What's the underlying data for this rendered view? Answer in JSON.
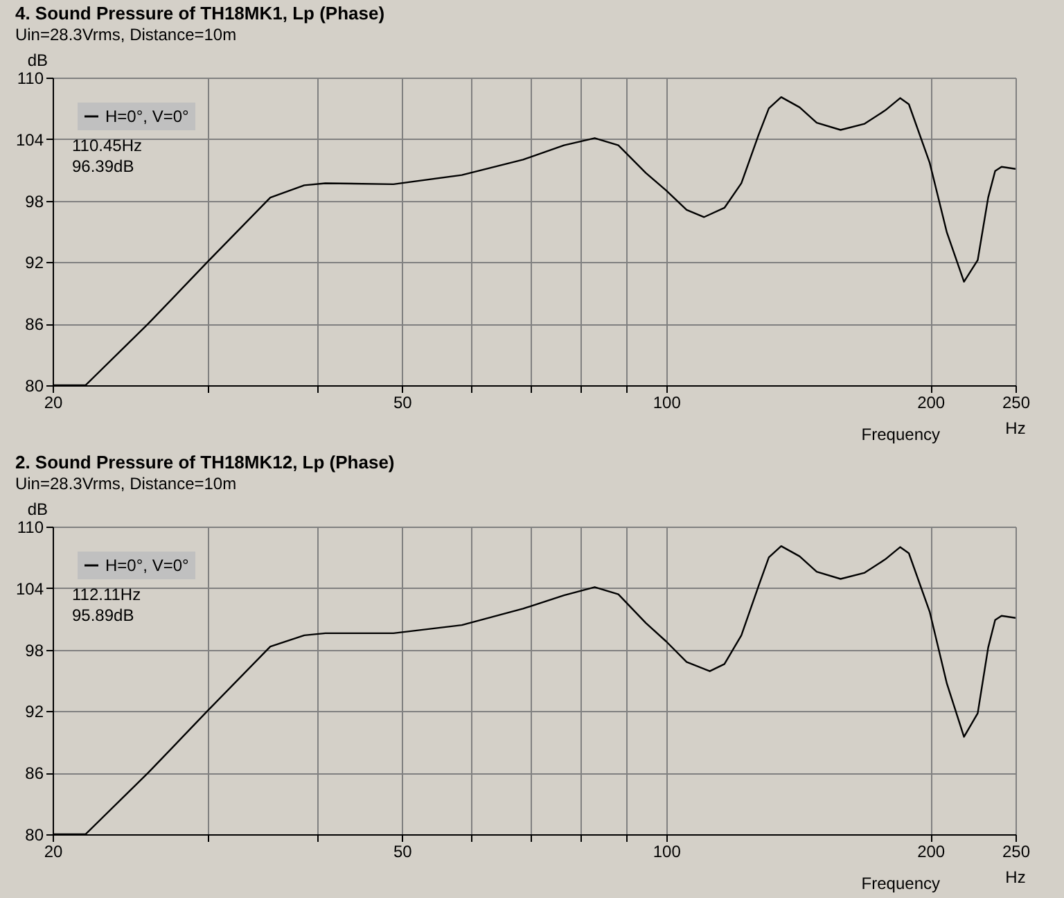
{
  "chart_data": [
    {
      "type": "line",
      "title": "4. Sound Pressure of TH18MK1, Lp (Phase)",
      "subtitle": "Uin=28.3Vrms, Distance=10m",
      "xlabel": "Frequency",
      "ylabel": "dB",
      "annotations": [
        "110.45Hz",
        "96.39dB",
        "Hz"
      ],
      "x": [
        20,
        21.8,
        25.7,
        30,
        35.4,
        38.7,
        40.9,
        48.9,
        58.5,
        68.7,
        76.5,
        82.9,
        88.2,
        94.8,
        100,
        105.5,
        110.45,
        116.5,
        121.8,
        127.4,
        130.9,
        135.2,
        141.9,
        148.4,
        158,
        168.3,
        177.6,
        184.7,
        189,
        199.6,
        208.8,
        218.4,
        226.4,
        232.7,
        237,
        241,
        250
      ],
      "series": [
        {
          "name": "H=0°, V=0°",
          "color": "#000000",
          "values": [
            80,
            80,
            86,
            92,
            98.3,
            99.5,
            99.7,
            99.6,
            100.5,
            102,
            103.4,
            104.1,
            103.4,
            100.7,
            99,
            97.1,
            96.4,
            97.3,
            99.7,
            104.4,
            107,
            108.1,
            107.1,
            105.6,
            104.9,
            105.5,
            106.8,
            108,
            107.4,
            101.7,
            94.9,
            90.1,
            92.2,
            98.3,
            100.9,
            101.3,
            101.1
          ]
        }
      ],
      "xlim": [
        20,
        250
      ],
      "ylim": [
        80,
        110
      ],
      "log": "x",
      "xticks": [
        20,
        {
          "value": 30,
          "label": null
        },
        {
          "value": 40,
          "label": null
        },
        50,
        {
          "value": 60,
          "label": null
        },
        {
          "value": 70,
          "label": null
        },
        {
          "value": 80,
          "label": null
        },
        {
          "value": 90,
          "label": null
        },
        100,
        200,
        250
      ],
      "yticks": [
        80,
        86,
        92,
        98,
        104,
        110
      ],
      "grid": true,
      "legend": "top left",
      "marker": "none",
      "line_style": "solid"
    },
    {
      "type": "line",
      "title": "2. Sound Pressure of TH18MK12, Lp (Phase)",
      "subtitle": "Uin=28.3Vrms, Distance=10m",
      "xlabel": "Frequency",
      "ylabel": "dB",
      "annotations": [
        "112.11Hz",
        "95.89dB",
        "Hz"
      ],
      "x": [
        20,
        21.8,
        25.7,
        30,
        35.4,
        38.7,
        40.9,
        48.9,
        58.5,
        68.7,
        76.5,
        82.9,
        88.2,
        94.8,
        100,
        105.5,
        112.11,
        116.5,
        121.8,
        127.4,
        130.9,
        135.2,
        141.9,
        148.4,
        158,
        168.3,
        177.6,
        184.7,
        189,
        199.6,
        208.8,
        218.4,
        226.4,
        232.7,
        237,
        241,
        250
      ],
      "series": [
        {
          "name": "H=0°, V=0°",
          "color": "#000000",
          "values": [
            80,
            80,
            86,
            92,
            98.3,
            99.4,
            99.6,
            99.6,
            100.4,
            102,
            103.3,
            104.1,
            103.4,
            100.6,
            98.8,
            96.8,
            95.9,
            96.6,
            99.4,
            104.2,
            107,
            108.1,
            107.1,
            105.6,
            104.9,
            105.5,
            106.8,
            108,
            107.4,
            101.7,
            94.7,
            89.5,
            91.8,
            98.2,
            100.9,
            101.3,
            101.1
          ]
        }
      ],
      "xlim": [
        20,
        250
      ],
      "ylim": [
        80,
        110
      ],
      "log": "x",
      "xticks": [
        20,
        {
          "value": 30,
          "label": null
        },
        {
          "value": 40,
          "label": null
        },
        50,
        {
          "value": 60,
          "label": null
        },
        {
          "value": 70,
          "label": null
        },
        {
          "value": 80,
          "label": null
        },
        {
          "value": 90,
          "label": null
        },
        100,
        200,
        250
      ],
      "yticks": [
        80,
        86,
        92,
        98,
        104,
        110
      ],
      "grid": true,
      "legend": "top left",
      "marker": "none",
      "line_style": "solid"
    }
  ]
}
